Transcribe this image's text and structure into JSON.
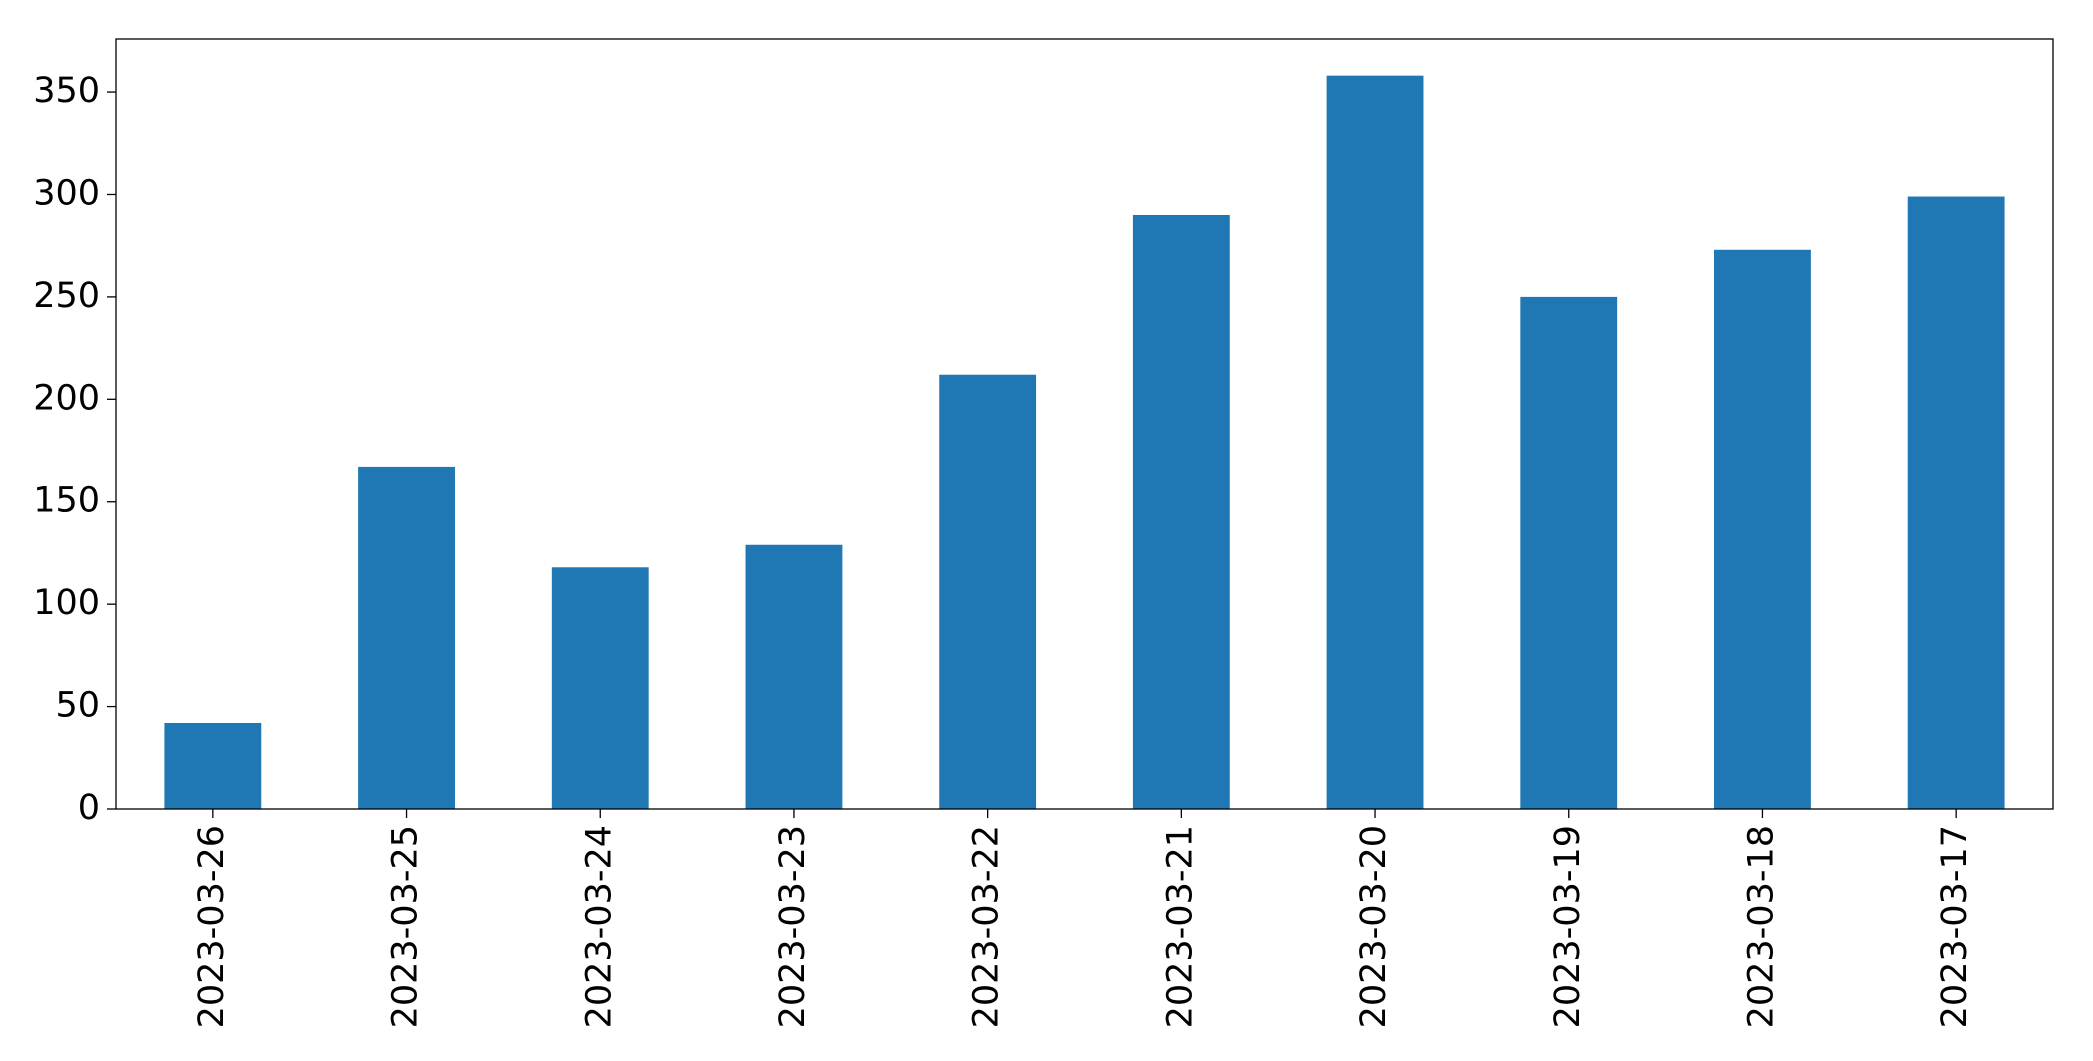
{
  "chart_data": {
    "type": "bar",
    "categories": [
      "2023-03-26",
      "2023-03-25",
      "2023-03-24",
      "2023-03-23",
      "2023-03-22",
      "2023-03-21",
      "2023-03-20",
      "2023-03-19",
      "2023-03-18",
      "2023-03-17"
    ],
    "values": [
      42,
      167,
      118,
      129,
      212,
      290,
      358,
      250,
      273,
      299
    ],
    "color": "#1f77b4",
    "ylim": [
      0,
      375.9
    ],
    "yticks": [
      0,
      50,
      100,
      150,
      200,
      250,
      300,
      350
    ],
    "grid": false
  }
}
